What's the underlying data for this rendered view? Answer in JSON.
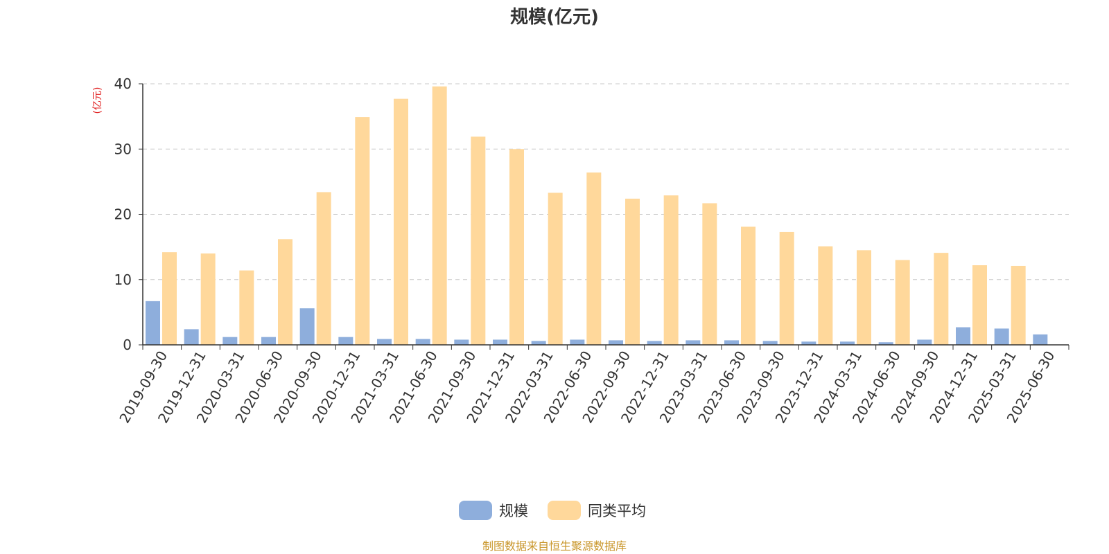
{
  "chart_data": {
    "type": "bar",
    "title": "规模(亿元)",
    "ylabel": "(亿元)",
    "ylim": [
      0,
      40
    ],
    "yticks": [
      0,
      10,
      20,
      30,
      40
    ],
    "grid": true,
    "legend_position": "bottom",
    "categories": [
      "2019-09-30",
      "2019-12-31",
      "2020-03-31",
      "2020-06-30",
      "2020-09-30",
      "2020-12-31",
      "2021-03-31",
      "2021-06-30",
      "2021-09-30",
      "2021-12-31",
      "2022-03-31",
      "2022-06-30",
      "2022-09-30",
      "2022-12-31",
      "2023-03-31",
      "2023-06-30",
      "2023-09-30",
      "2023-12-31",
      "2024-03-31",
      "2024-06-30",
      "2024-09-30",
      "2024-12-31",
      "2025-03-31",
      "2025-06-30"
    ],
    "series": [
      {
        "name": "规模",
        "color": "#8EAEDC",
        "values": [
          6.7,
          2.4,
          1.2,
          1.2,
          5.6,
          1.2,
          0.9,
          0.9,
          0.8,
          0.8,
          0.6,
          0.8,
          0.7,
          0.6,
          0.7,
          0.7,
          0.6,
          0.5,
          0.5,
          0.4,
          0.8,
          2.7,
          2.5,
          1.6
        ]
      },
      {
        "name": "同类平均",
        "color": "#FFD89B",
        "values": [
          14.2,
          14.0,
          11.4,
          16.2,
          23.4,
          34.9,
          37.7,
          39.6,
          31.9,
          30.0,
          23.3,
          26.4,
          22.4,
          22.9,
          21.7,
          18.1,
          17.3,
          15.1,
          14.5,
          13.0,
          14.1,
          12.2,
          12.1,
          null
        ]
      }
    ]
  },
  "source_note": "制图数据来自恒生聚源数据库",
  "colors": {
    "axis": "#333333",
    "grid": "#C8C8C8",
    "unit_label": "#E02020",
    "source_note": "#C9962A"
  }
}
